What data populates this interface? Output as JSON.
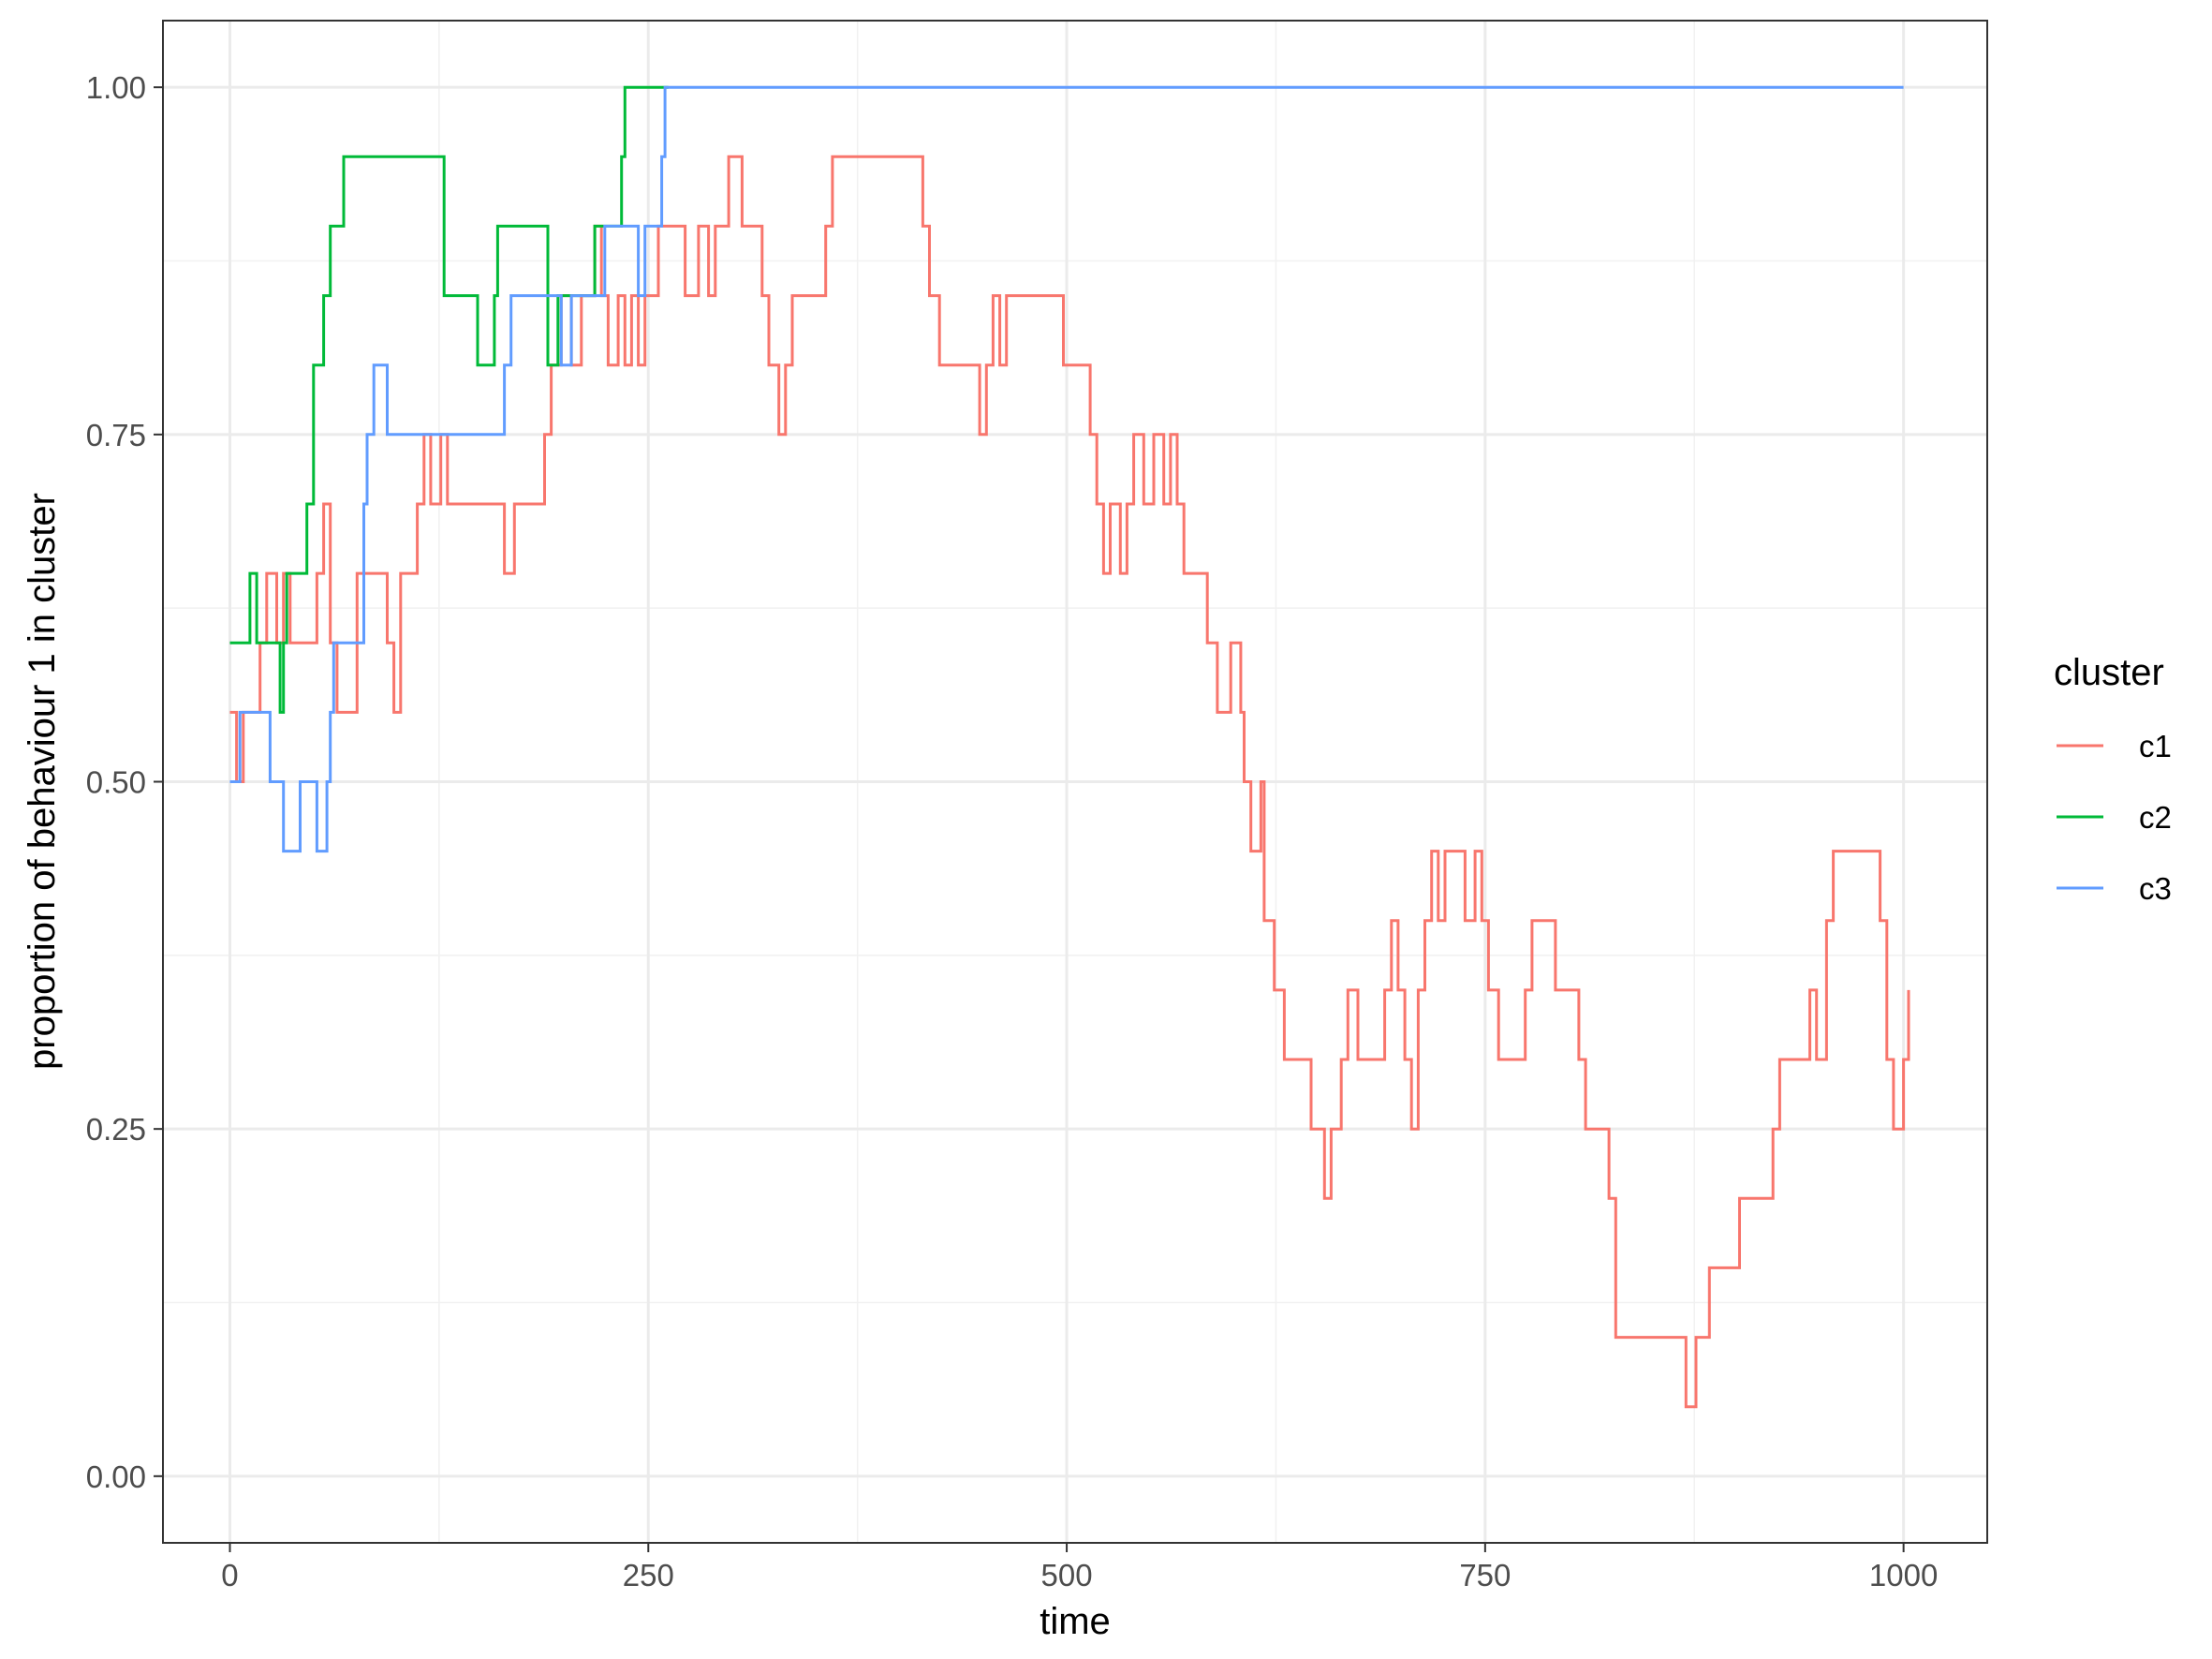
{
  "chart_data": {
    "type": "line",
    "step": true,
    "xlabel": "time",
    "ylabel": "proportion of behaviour 1 in cluster",
    "xlim": [
      -40,
      1050
    ],
    "ylim": [
      -0.048,
      1.048
    ],
    "x_ticks": [
      0,
      250,
      500,
      750,
      1000
    ],
    "x_tick_labels": [
      "0",
      "250",
      "500",
      "750",
      "1000"
    ],
    "y_ticks": [
      0,
      0.25,
      0.5,
      0.75,
      1
    ],
    "y_tick_labels": [
      "0.00",
      "0.25",
      "0.50",
      "0.75",
      "1.00"
    ],
    "grid": true,
    "legend": {
      "title": "cluster",
      "position": "right"
    },
    "series": [
      {
        "name": "c1",
        "color": "#F8766D",
        "points": [
          [
            0,
            0.55
          ],
          [
            4,
            0.5
          ],
          [
            8,
            0.55
          ],
          [
            18,
            0.6
          ],
          [
            22,
            0.65
          ],
          [
            28,
            0.6
          ],
          [
            32,
            0.65
          ],
          [
            36,
            0.6
          ],
          [
            44,
            0.6
          ],
          [
            52,
            0.65
          ],
          [
            56,
            0.7
          ],
          [
            60,
            0.6
          ],
          [
            64,
            0.55
          ],
          [
            72,
            0.55
          ],
          [
            76,
            0.65
          ],
          [
            90,
            0.65
          ],
          [
            94,
            0.6
          ],
          [
            98,
            0.55
          ],
          [
            102,
            0.65
          ],
          [
            108,
            0.65
          ],
          [
            112,
            0.7
          ],
          [
            116,
            0.75
          ],
          [
            120,
            0.7
          ],
          [
            126,
            0.75
          ],
          [
            130,
            0.7
          ],
          [
            150,
            0.7
          ],
          [
            160,
            0.7
          ],
          [
            164,
            0.65
          ],
          [
            170,
            0.7
          ],
          [
            180,
            0.7
          ],
          [
            188,
            0.75
          ],
          [
            192,
            0.8
          ],
          [
            198,
            0.85
          ],
          [
            204,
            0.8
          ],
          [
            210,
            0.85
          ],
          [
            214,
            0.85
          ],
          [
            218,
            0.9
          ],
          [
            222,
            0.85
          ],
          [
            226,
            0.8
          ],
          [
            232,
            0.85
          ],
          [
            236,
            0.8
          ],
          [
            240,
            0.85
          ],
          [
            244,
            0.8
          ],
          [
            248,
            0.85
          ],
          [
            256,
            0.9
          ],
          [
            270,
            0.9
          ],
          [
            272,
            0.85
          ],
          [
            280,
            0.9
          ],
          [
            286,
            0.85
          ],
          [
            290,
            0.9
          ],
          [
            298,
            0.95
          ],
          [
            306,
            0.9
          ],
          [
            314,
            0.9
          ],
          [
            318,
            0.85
          ],
          [
            322,
            0.8
          ],
          [
            328,
            0.75
          ],
          [
            332,
            0.8
          ],
          [
            336,
            0.85
          ],
          [
            350,
            0.85
          ],
          [
            356,
            0.9
          ],
          [
            360,
            0.95
          ],
          [
            410,
            0.95
          ],
          [
            414,
            0.9
          ],
          [
            418,
            0.85
          ],
          [
            424,
            0.8
          ],
          [
            444,
            0.8
          ],
          [
            448,
            0.75
          ],
          [
            452,
            0.8
          ],
          [
            456,
            0.85
          ],
          [
            460,
            0.8
          ],
          [
            464,
            0.85
          ],
          [
            494,
            0.85
          ],
          [
            498,
            0.8
          ],
          [
            510,
            0.8
          ],
          [
            514,
            0.75
          ],
          [
            518,
            0.7
          ],
          [
            522,
            0.65
          ],
          [
            526,
            0.7
          ],
          [
            532,
            0.65
          ],
          [
            536,
            0.7
          ],
          [
            540,
            0.75
          ],
          [
            546,
            0.7
          ],
          [
            552,
            0.75
          ],
          [
            558,
            0.7
          ],
          [
            562,
            0.75
          ],
          [
            566,
            0.7
          ],
          [
            570,
            0.65
          ],
          [
            580,
            0.65
          ],
          [
            584,
            0.6
          ],
          [
            590,
            0.55
          ],
          [
            598,
            0.6
          ],
          [
            604,
            0.55
          ],
          [
            606,
            0.5
          ],
          [
            610,
            0.45
          ],
          [
            616,
            0.5
          ],
          [
            618,
            0.4
          ],
          [
            624,
            0.35
          ],
          [
            630,
            0.3
          ],
          [
            642,
            0.3
          ],
          [
            646,
            0.25
          ],
          [
            654,
            0.2
          ],
          [
            658,
            0.25
          ],
          [
            664,
            0.3
          ],
          [
            668,
            0.35
          ],
          [
            674,
            0.3
          ],
          [
            690,
            0.35
          ],
          [
            694,
            0.4
          ],
          [
            698,
            0.35
          ],
          [
            702,
            0.3
          ],
          [
            706,
            0.25
          ],
          [
            710,
            0.35
          ],
          [
            714,
            0.4
          ],
          [
            718,
            0.45
          ],
          [
            722,
            0.4
          ],
          [
            726,
            0.45
          ],
          [
            738,
            0.4
          ],
          [
            744,
            0.45
          ],
          [
            748,
            0.4
          ],
          [
            752,
            0.35
          ],
          [
            758,
            0.3
          ],
          [
            770,
            0.3
          ],
          [
            774,
            0.35
          ],
          [
            778,
            0.4
          ],
          [
            792,
            0.35
          ],
          [
            806,
            0.3
          ],
          [
            810,
            0.25
          ],
          [
            824,
            0.2
          ],
          [
            828,
            0.1
          ],
          [
            868,
            0.1
          ],
          [
            870,
            0.05
          ],
          [
            876,
            0.1
          ],
          [
            884,
            0.15
          ],
          [
            898,
            0.15
          ],
          [
            902,
            0.2
          ],
          [
            918,
            0.2
          ],
          [
            922,
            0.25
          ],
          [
            926,
            0.3
          ],
          [
            942,
            0.3
          ],
          [
            944,
            0.35
          ],
          [
            948,
            0.3
          ],
          [
            954,
            0.4
          ],
          [
            958,
            0.45
          ],
          [
            982,
            0.45
          ],
          [
            986,
            0.4
          ],
          [
            990,
            0.3
          ],
          [
            994,
            0.25
          ],
          [
            1000,
            0.3
          ],
          [
            1003,
            0.35
          ]
        ]
      },
      {
        "name": "c2",
        "color": "#00BA38",
        "points": [
          [
            0,
            0.6
          ],
          [
            12,
            0.65
          ],
          [
            16,
            0.6
          ],
          [
            28,
            0.6
          ],
          [
            30,
            0.55
          ],
          [
            32,
            0.6
          ],
          [
            34,
            0.65
          ],
          [
            44,
            0.65
          ],
          [
            46,
            0.7
          ],
          [
            50,
            0.8
          ],
          [
            54,
            0.8
          ],
          [
            56,
            0.85
          ],
          [
            58,
            0.85
          ],
          [
            60,
            0.9
          ],
          [
            66,
            0.9
          ],
          [
            68,
            0.95
          ],
          [
            124,
            0.95
          ],
          [
            128,
            0.85
          ],
          [
            146,
            0.85
          ],
          [
            148,
            0.8
          ],
          [
            154,
            0.8
          ],
          [
            158,
            0.85
          ],
          [
            160,
            0.9
          ],
          [
            186,
            0.9
          ],
          [
            190,
            0.8
          ],
          [
            196,
            0.85
          ],
          [
            210,
            0.85
          ],
          [
            214,
            0.85
          ],
          [
            218,
            0.9
          ],
          [
            230,
            0.9
          ],
          [
            234,
            0.95
          ],
          [
            236,
            1
          ],
          [
            262,
            1
          ]
        ]
      },
      {
        "name": "c3",
        "color": "#619CFF",
        "points": [
          [
            0,
            0.5
          ],
          [
            6,
            0.55
          ],
          [
            22,
            0.55
          ],
          [
            24,
            0.5
          ],
          [
            30,
            0.5
          ],
          [
            32,
            0.45
          ],
          [
            40,
            0.45
          ],
          [
            42,
            0.5
          ],
          [
            50,
            0.5
          ],
          [
            52,
            0.45
          ],
          [
            56,
            0.45
          ],
          [
            58,
            0.5
          ],
          [
            60,
            0.55
          ],
          [
            62,
            0.6
          ],
          [
            66,
            0.6
          ],
          [
            70,
            0.6
          ],
          [
            72,
            0.6
          ],
          [
            78,
            0.6
          ],
          [
            80,
            0.7
          ],
          [
            82,
            0.75
          ],
          [
            84,
            0.75
          ],
          [
            86,
            0.8
          ],
          [
            92,
            0.8
          ],
          [
            94,
            0.75
          ],
          [
            154,
            0.75
          ],
          [
            162,
            0.75
          ],
          [
            164,
            0.8
          ],
          [
            168,
            0.85
          ],
          [
            196,
            0.85
          ],
          [
            198,
            0.8
          ],
          [
            204,
            0.85
          ],
          [
            218,
            0.85
          ],
          [
            222,
            0.85
          ],
          [
            224,
            0.9
          ],
          [
            240,
            0.9
          ],
          [
            244,
            0.85
          ],
          [
            248,
            0.9
          ],
          [
            258,
            0.95
          ],
          [
            260,
            1
          ],
          [
            1000,
            1
          ]
        ]
      }
    ]
  }
}
